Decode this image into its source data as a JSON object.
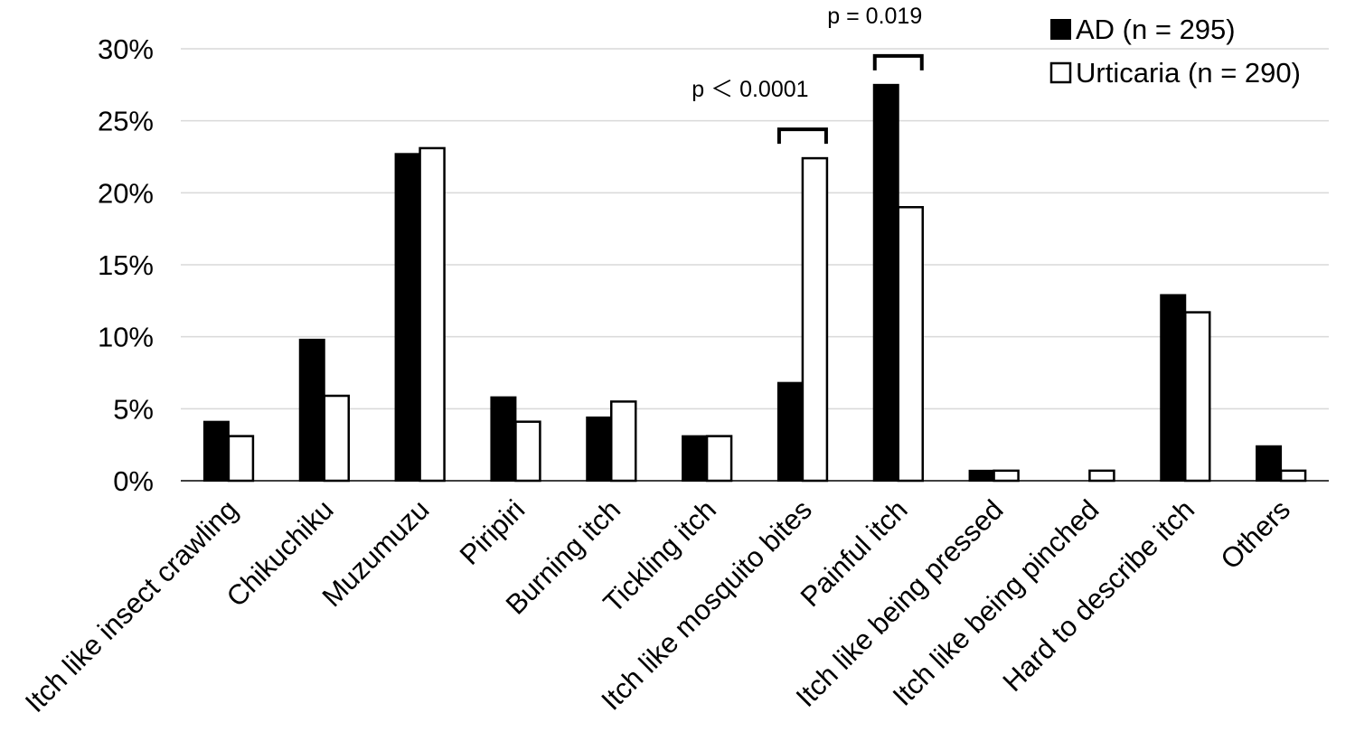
{
  "chart_data": {
    "type": "bar",
    "title": "",
    "xlabel": "",
    "ylabel": "",
    "ylim": [
      0,
      30
    ],
    "y_tick_values": [
      0,
      5,
      10,
      15,
      20,
      25,
      30
    ],
    "y_tick_labels": [
      "0%",
      "5%",
      "10%",
      "15%",
      "20%",
      "25%",
      "30%"
    ],
    "grid": true,
    "legend_position": "top-right",
    "categories": [
      "Itch like insect crawling",
      "Chikuchiku",
      "Muzumuzu",
      "Piripiri",
      "Burning itch",
      "Tickling itch",
      "Itch like mosquito bites",
      "Painful itch",
      "Itch like being pressed",
      "Itch like being pinched",
      "Hard to describe itch",
      "Others"
    ],
    "series": [
      {
        "name": "AD (n = 295)",
        "color": "#000000",
        "values": [
          4.1,
          9.8,
          22.7,
          5.8,
          4.4,
          3.1,
          6.8,
          27.5,
          0.7,
          0,
          12.9,
          2.4
        ]
      },
      {
        "name": "Urticaria  (n = 290)",
        "color": "#ffffff",
        "values": [
          3.1,
          5.9,
          23.1,
          4.1,
          5.5,
          3.1,
          22.4,
          19.0,
          0.7,
          0.7,
          11.7,
          0.7
        ]
      }
    ],
    "annotations": [
      {
        "category_index": 6,
        "text": "p ＜ 0.0001"
      },
      {
        "category_index": 7,
        "text": "p = 0.019"
      }
    ]
  }
}
